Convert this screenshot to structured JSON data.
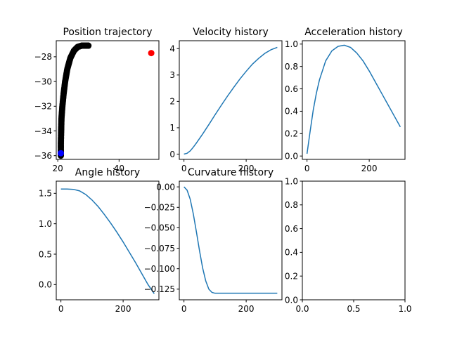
{
  "chart_data": [
    {
      "id": "position",
      "type": "scatter",
      "title": "Position trajectory",
      "xlim": [
        19.5,
        53
      ],
      "ylim": [
        -36.3,
        -26.7
      ],
      "xticks": [
        20,
        40
      ],
      "yticks": [
        -36,
        -34,
        -32,
        -30,
        -28
      ],
      "series": [
        {
          "kind": "scatter",
          "color": "#000000",
          "points": [
            [
              21.0,
              -36.0
            ],
            [
              21.0,
              -35.0
            ],
            [
              21.1,
              -34.0
            ],
            [
              21.2,
              -33.0
            ],
            [
              21.5,
              -32.0
            ],
            [
              21.9,
              -31.0
            ],
            [
              22.4,
              -30.0
            ],
            [
              23.1,
              -29.0
            ],
            [
              24.1,
              -28.1
            ],
            [
              25.3,
              -27.5
            ],
            [
              26.5,
              -27.2
            ],
            [
              27.8,
              -27.1
            ],
            [
              29.0,
              -27.1
            ],
            [
              30.0,
              -27.1
            ]
          ]
        },
        {
          "kind": "point",
          "name": "start",
          "color": "#0000ff",
          "x": 21.0,
          "y": -35.8
        },
        {
          "kind": "point",
          "name": "goal",
          "color": "#ff0000",
          "x": 50.5,
          "y": -27.7
        }
      ]
    },
    {
      "id": "velocity",
      "type": "line",
      "title": "Velocity history",
      "xlim": [
        -15,
        315
      ],
      "ylim": [
        -0.2,
        4.3
      ],
      "xticks": [
        0,
        200
      ],
      "yticks": [
        0,
        1,
        2,
        3,
        4
      ],
      "series": [
        {
          "color": "#1f77b4",
          "x": [
            0,
            10,
            20,
            30,
            40,
            60,
            80,
            100,
            120,
            140,
            160,
            180,
            200,
            220,
            240,
            260,
            280,
            300
          ],
          "y": [
            0.0,
            0.03,
            0.12,
            0.26,
            0.42,
            0.76,
            1.12,
            1.49,
            1.85,
            2.2,
            2.53,
            2.85,
            3.14,
            3.41,
            3.63,
            3.82,
            3.96,
            4.05
          ]
        }
      ]
    },
    {
      "id": "acceleration",
      "type": "line",
      "title": "Acceleration history",
      "xlim": [
        -15,
        315
      ],
      "ylim": [
        -0.03,
        1.03
      ],
      "xticks": [
        0,
        200
      ],
      "yticks": [
        0.0,
        0.2,
        0.4,
        0.6,
        0.8,
        1.0
      ],
      "series": [
        {
          "color": "#1f77b4",
          "x": [
            0,
            10,
            20,
            30,
            40,
            60,
            80,
            100,
            120,
            140,
            160,
            180,
            200,
            220,
            240,
            260,
            280,
            300
          ],
          "y": [
            0.02,
            0.22,
            0.41,
            0.56,
            0.68,
            0.85,
            0.94,
            0.98,
            0.99,
            0.97,
            0.92,
            0.85,
            0.76,
            0.66,
            0.56,
            0.46,
            0.36,
            0.26
          ]
        }
      ]
    },
    {
      "id": "angle",
      "type": "line",
      "title": "Angle history",
      "xlim": [
        -15,
        315
      ],
      "ylim": [
        -0.25,
        1.7
      ],
      "xticks": [
        0,
        200
      ],
      "yticks": [
        0.0,
        0.5,
        1.0,
        1.5
      ],
      "series": [
        {
          "color": "#1f77b4",
          "x": [
            0,
            20,
            40,
            60,
            80,
            100,
            120,
            140,
            160,
            180,
            200,
            220,
            240,
            260,
            280,
            300
          ],
          "y": [
            1.57,
            1.57,
            1.565,
            1.54,
            1.48,
            1.39,
            1.28,
            1.15,
            1.01,
            0.86,
            0.7,
            0.53,
            0.36,
            0.18,
            0.0,
            -0.15
          ]
        }
      ]
    },
    {
      "id": "curvature",
      "type": "line",
      "title": "Curvature history",
      "xlim": [
        -15,
        315
      ],
      "ylim": [
        -0.138,
        0.007
      ],
      "xticks": [
        0,
        200
      ],
      "yticks": [
        0.0,
        -0.025,
        -0.05,
        -0.075,
        -0.1,
        -0.125
      ],
      "ytick_labels": [
        "0.00",
        "−0.025",
        "−0.050",
        "−0.075",
        "−0.100",
        "−0.125"
      ],
      "series": [
        {
          "color": "#1f77b4",
          "x": [
            0,
            10,
            20,
            30,
            40,
            50,
            60,
            70,
            80,
            90,
            100,
            120,
            160,
            200,
            250,
            300
          ],
          "y": [
            0.0,
            -0.004,
            -0.015,
            -0.033,
            -0.055,
            -0.078,
            -0.099,
            -0.115,
            -0.125,
            -0.129,
            -0.13,
            -0.13,
            -0.13,
            -0.13,
            -0.13,
            -0.13
          ]
        }
      ]
    },
    {
      "id": "empty",
      "type": "line",
      "title": "",
      "xlim": [
        0,
        1
      ],
      "ylim": [
        0,
        1
      ],
      "xticks": [
        0.0,
        0.5,
        1.0
      ],
      "yticks": [
        0.0,
        0.2,
        0.4,
        0.6,
        0.8,
        1.0
      ],
      "series": []
    }
  ]
}
